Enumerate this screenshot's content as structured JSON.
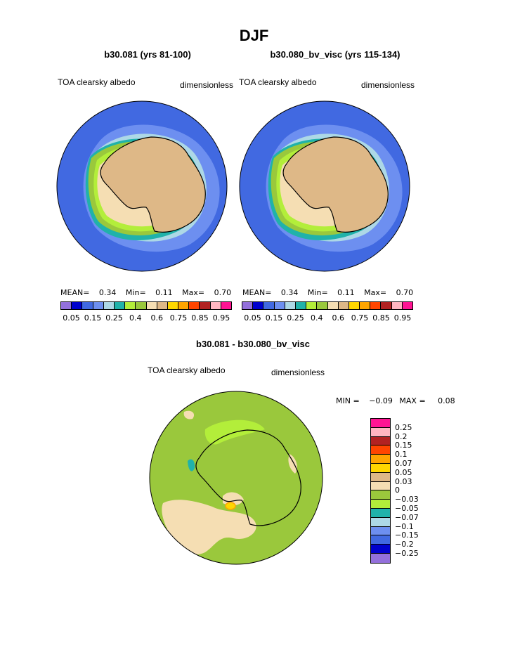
{
  "title": "DJF",
  "panels": [
    {
      "case": "b30.081 (yrs 81-100)",
      "variable": "TOA clearsky albedo",
      "units": "dimensionless",
      "stats": {
        "mean_label": "MEAN=",
        "mean": "0.34",
        "min_label": "Min=",
        "min": "0.11",
        "max_label": "Max=",
        "max": "0.70"
      }
    },
    {
      "case": "b30.080_bv_visc (yrs 115-134)",
      "variable": "TOA clearsky albedo",
      "units": "dimensionless",
      "stats": {
        "mean_label": "MEAN=",
        "mean": "0.34",
        "min_label": "Min=",
        "min": "0.11",
        "max_label": "Max=",
        "max": "0.70"
      }
    }
  ],
  "field_colorbar": {
    "colors": [
      "#9370db",
      "#0000cd",
      "#4169e1",
      "#6d8ff0",
      "#add8e6",
      "#20b2aa",
      "#b3ee3a",
      "#9ac83c",
      "#f5deb3",
      "#deb887",
      "#ffd700",
      "#ffa500",
      "#ff4500",
      "#b22222",
      "#ffb6c1",
      "#ff1493"
    ],
    "labels": [
      "0.05",
      "0.15",
      "0.25",
      "0.4",
      "0.6",
      "0.75",
      "0.85",
      "0.95"
    ]
  },
  "diff": {
    "title": "b30.081 - b30.080_bv_visc",
    "variable": "TOA clearsky albedo",
    "units": "dimensionless",
    "min_label": "MIN =",
    "min": "−0.09",
    "max_label": "MAX =",
    "max": "0.08",
    "colorbar": {
      "colors": [
        "#ff1493",
        "#ffb6c1",
        "#b22222",
        "#ff4500",
        "#ffa500",
        "#ffd700",
        "#deb887",
        "#f5deb3",
        "#9ac83c",
        "#b3ee3a",
        "#20b2aa",
        "#add8e6",
        "#6d8ff0",
        "#4169e1",
        "#0000cd",
        "#9370db"
      ],
      "labels": [
        "0.25",
        "0.2",
        "0.15",
        "0.1",
        "0.07",
        "0.05",
        "0.03",
        "0",
        "−0.03",
        "−0.05",
        "−0.07",
        "−0.1",
        "−0.15",
        "−0.2",
        "−0.25"
      ]
    }
  },
  "map_colors": {
    "ocean_outer": "#4169e1",
    "ocean_mid": "#6d8ff0",
    "ice_light": "#add8e6",
    "teal": "#20b2aa",
    "green": "#9ac83c",
    "lightgreen": "#b3ee3a",
    "tan": "#f5deb3",
    "land": "#deb887",
    "diff_bg": "#9ac83c"
  }
}
